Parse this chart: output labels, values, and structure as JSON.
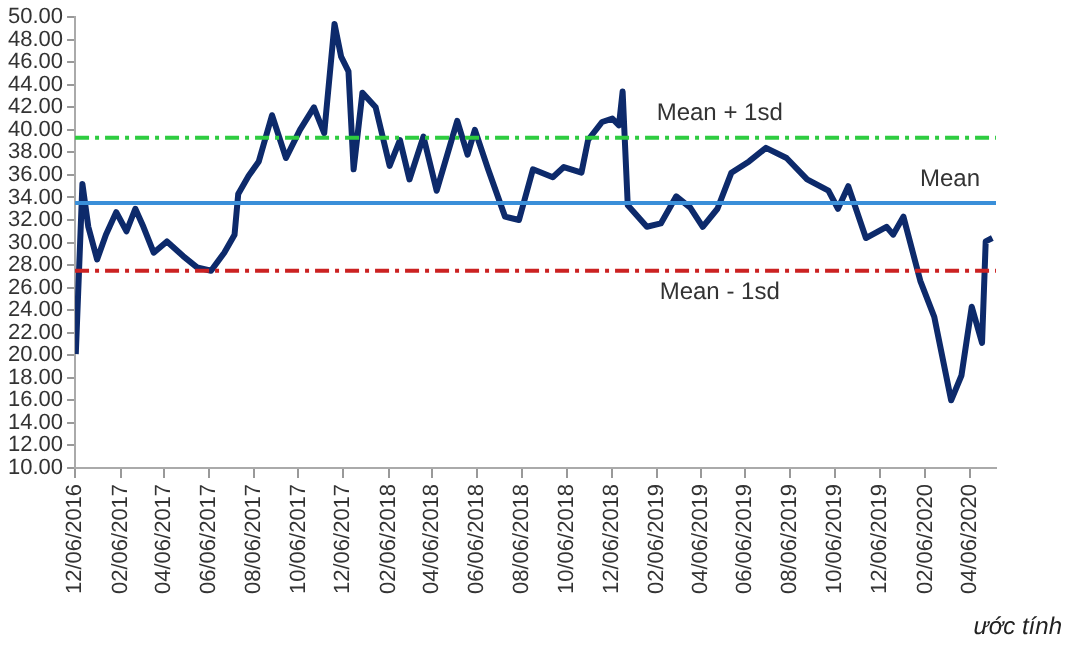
{
  "chart_data": {
    "type": "line",
    "x": [
      "2016-12-07",
      "2016-12-16",
      "2016-12-24",
      "2017-01-05",
      "2017-01-17",
      "2017-01-31",
      "2017-02-14",
      "2017-02-26",
      "2017-03-09",
      "2017-03-23",
      "2017-04-10",
      "2017-05-02",
      "2017-05-21",
      "2017-06-09",
      "2017-06-27",
      "2017-07-11",
      "2017-07-16",
      "2017-07-30",
      "2017-08-13",
      "2017-08-31",
      "2017-09-19",
      "2017-10-08",
      "2017-10-27",
      "2017-11-10",
      "2017-11-24",
      "2017-12-03",
      "2017-12-13",
      "2017-12-20",
      "2018-01-01",
      "2018-01-19",
      "2018-02-07",
      "2018-02-21",
      "2018-03-06",
      "2018-03-25",
      "2018-04-12",
      "2018-05-10",
      "2018-05-24",
      "2018-06-03",
      "2018-06-21",
      "2018-07-14",
      "2018-08-02",
      "2018-08-21",
      "2018-09-17",
      "2018-10-02",
      "2018-10-26",
      "2018-11-04",
      "2018-11-23",
      "2018-12-07",
      "2018-12-16",
      "2018-12-21",
      "2018-12-28",
      "2019-01-23",
      "2019-02-11",
      "2019-03-04",
      "2019-03-23",
      "2019-04-09",
      "2019-04-29",
      "2019-05-18",
      "2019-06-11",
      "2019-07-04",
      "2019-08-01",
      "2019-08-29",
      "2019-09-27",
      "2019-10-10",
      "2019-10-24",
      "2019-11-17",
      "2019-12-15",
      "2019-12-24",
      "2020-01-07",
      "2020-01-30",
      "2020-02-18",
      "2020-03-12",
      "2020-03-26",
      "2020-04-09",
      "2020-04-23",
      "2020-04-28",
      "2020-05-07"
    ],
    "series": [
      {
        "color": "#0d2a6b",
        "values": [
          20.1,
          35.2,
          31.4,
          28.5,
          30.7,
          32.7,
          31,
          33,
          31.4,
          29.1,
          30.1,
          28.8,
          27.8,
          27.5,
          29.1,
          30.7,
          34.3,
          35.9,
          37.2,
          41.3,
          37.5,
          40,
          42,
          39.7,
          49.4,
          46.5,
          45.2,
          36.5,
          43.3,
          42,
          36.8,
          39.1,
          35.6,
          39.4,
          34.6,
          40.8,
          37.8,
          40,
          36.5,
          32.3,
          32,
          36.5,
          35.8,
          36.7,
          36.2,
          39.1,
          40.7,
          41,
          40.4,
          43.4,
          33.3,
          31.4,
          31.7,
          34.1,
          33.1,
          31.4,
          33,
          36.2,
          37.2,
          38.4,
          37.5,
          35.6,
          34.6,
          33,
          35,
          30.4,
          31.4,
          30.7,
          32.3,
          26.6,
          23.4,
          16,
          18.2,
          24.3,
          21.1,
          30.1,
          30.4
        ]
      }
    ],
    "xlim": [
      "2016-12-06",
      "2020-05-12"
    ],
    "xticks": [
      {
        "value": "2016-12-06",
        "label": "12/06/2016"
      },
      {
        "value": "2017-02-06",
        "label": "02/06/2017"
      },
      {
        "value": "2017-04-06",
        "label": "04/06/2017"
      },
      {
        "value": "2017-06-06",
        "label": "06/06/2017"
      },
      {
        "value": "2017-08-06",
        "label": "08/06/2017"
      },
      {
        "value": "2017-10-06",
        "label": "10/06/2017"
      },
      {
        "value": "2017-12-06",
        "label": "12/06/2017"
      },
      {
        "value": "2018-02-06",
        "label": "02/06/2018"
      },
      {
        "value": "2018-04-06",
        "label": "04/06/2018"
      },
      {
        "value": "2018-06-06",
        "label": "06/06/2018"
      },
      {
        "value": "2018-08-06",
        "label": "08/06/2018"
      },
      {
        "value": "2018-10-06",
        "label": "10/06/2018"
      },
      {
        "value": "2018-12-06",
        "label": "12/06/2018"
      },
      {
        "value": "2019-02-06",
        "label": "02/06/2019"
      },
      {
        "value": "2019-04-06",
        "label": "04/06/2019"
      },
      {
        "value": "2019-06-06",
        "label": "06/06/2019"
      },
      {
        "value": "2019-08-06",
        "label": "08/06/2019"
      },
      {
        "value": "2019-10-06",
        "label": "10/06/2019"
      },
      {
        "value": "2019-12-06",
        "label": "12/06/2019"
      },
      {
        "value": "2020-02-06",
        "label": "02/06/2020"
      },
      {
        "value": "2020-04-06",
        "label": "04/06/2020"
      }
    ],
    "ylim": [
      10,
      50
    ],
    "yticks": [
      {
        "value": 10,
        "label": "10.00"
      },
      {
        "value": 12,
        "label": "12.00"
      },
      {
        "value": 14,
        "label": "14.00"
      },
      {
        "value": 16,
        "label": "16.00"
      },
      {
        "value": 18,
        "label": "18.00"
      },
      {
        "value": 20,
        "label": "20.00"
      },
      {
        "value": 22,
        "label": "22.00"
      },
      {
        "value": 24,
        "label": "24.00"
      },
      {
        "value": 26,
        "label": "26.00"
      },
      {
        "value": 28,
        "label": "28.00"
      },
      {
        "value": 30,
        "label": "30.00"
      },
      {
        "value": 32,
        "label": "32.00"
      },
      {
        "value": 34,
        "label": "34.00"
      },
      {
        "value": 36,
        "label": "36.00"
      },
      {
        "value": 38,
        "label": "38.00"
      },
      {
        "value": 40,
        "label": "40.00"
      },
      {
        "value": 42,
        "label": "42.00"
      },
      {
        "value": 44,
        "label": "44.00"
      },
      {
        "value": 46,
        "label": "46.00"
      },
      {
        "value": 48,
        "label": "48.00"
      },
      {
        "value": 50,
        "label": "50.00"
      }
    ],
    "ref_lines": [
      {
        "axis": "y",
        "value": 39.3,
        "label": "Mean + 1sd",
        "color": "#2ecc40",
        "line_style": "dashed"
      },
      {
        "axis": "y",
        "value": 33.5,
        "label": "Mean",
        "color": "#3a8fd9"
      },
      {
        "axis": "y",
        "value": 27.5,
        "label": "Mean - 1sd",
        "color": "#cc2222",
        "line_style": "dashed"
      }
    ],
    "annotations": [
      "ước tính"
    ],
    "grid": false,
    "legend": false,
    "marker": "none",
    "line_style": "solid"
  }
}
